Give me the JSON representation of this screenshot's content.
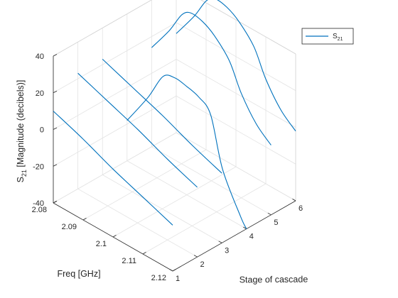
{
  "chart_data": {
    "type": "line",
    "projection": "3d",
    "title": "",
    "xlabel": "Stage of cascade",
    "ylabel": "Freq [GHz]",
    "zlabel": "S21 [Magnitude (decibels)]",
    "zlabel_parts": {
      "main": "S",
      "sub": "21",
      "rest": " [Magnitude  (decibels)]"
    },
    "xlim": [
      1,
      6
    ],
    "ylim": [
      2.08,
      2.12
    ],
    "zlim": [
      -40,
      40
    ],
    "xticks": [
      "1",
      "2",
      "3",
      "4",
      "5",
      "6"
    ],
    "yticks": [
      "2.08",
      "2.09",
      "2.1",
      "2.11",
      "2.12"
    ],
    "zticks": [
      "-40",
      "-20",
      "0",
      "20",
      "40"
    ],
    "grid": true,
    "legend": {
      "position": "top-right",
      "entries": [
        {
          "main": "S",
          "sub": "21"
        }
      ]
    },
    "series_color": "#0072BD",
    "series": [
      {
        "stage": 1,
        "points": [
          [
            2.08,
            10
          ],
          [
            2.09,
            4
          ],
          [
            2.1,
            -3
          ],
          [
            2.11,
            -9
          ],
          [
            2.12,
            -15
          ]
        ]
      },
      {
        "stage": 2,
        "points": [
          [
            2.08,
            23
          ],
          [
            2.09,
            17
          ],
          [
            2.1,
            11
          ],
          [
            2.11,
            4
          ],
          [
            2.12,
            -2
          ]
        ]
      },
      {
        "stage": 3,
        "points": [
          [
            2.08,
            23
          ],
          [
            2.09,
            17
          ],
          [
            2.1,
            11
          ],
          [
            2.11,
            4
          ],
          [
            2.12,
            -2
          ]
        ]
      },
      {
        "stage": 4,
        "points": [
          [
            2.08,
            -18
          ],
          [
            2.087,
            1
          ],
          [
            2.092,
            17
          ],
          [
            2.096,
            20
          ],
          [
            2.1,
            19
          ],
          [
            2.104,
            17
          ],
          [
            2.108,
            11
          ],
          [
            2.112,
            -15
          ],
          [
            2.118,
            -35
          ],
          [
            2.12,
            -40
          ]
        ]
      },
      {
        "stage": 5,
        "points": [
          [
            2.08,
            14
          ],
          [
            2.086,
            29
          ],
          [
            2.09,
            41
          ],
          [
            2.093,
            45
          ],
          [
            2.097,
            44
          ],
          [
            2.101,
            40
          ],
          [
            2.106,
            31
          ],
          [
            2.11,
            17
          ],
          [
            2.115,
            5
          ],
          [
            2.12,
            -2
          ]
        ]
      },
      {
        "stage": 6,
        "points": [
          [
            2.08,
            14
          ],
          [
            2.086,
            29
          ],
          [
            2.09,
            41
          ],
          [
            2.093,
            45
          ],
          [
            2.097,
            44
          ],
          [
            2.101,
            40
          ],
          [
            2.106,
            31
          ],
          [
            2.11,
            17
          ],
          [
            2.115,
            5
          ],
          [
            2.12,
            -2
          ]
        ]
      }
    ]
  }
}
